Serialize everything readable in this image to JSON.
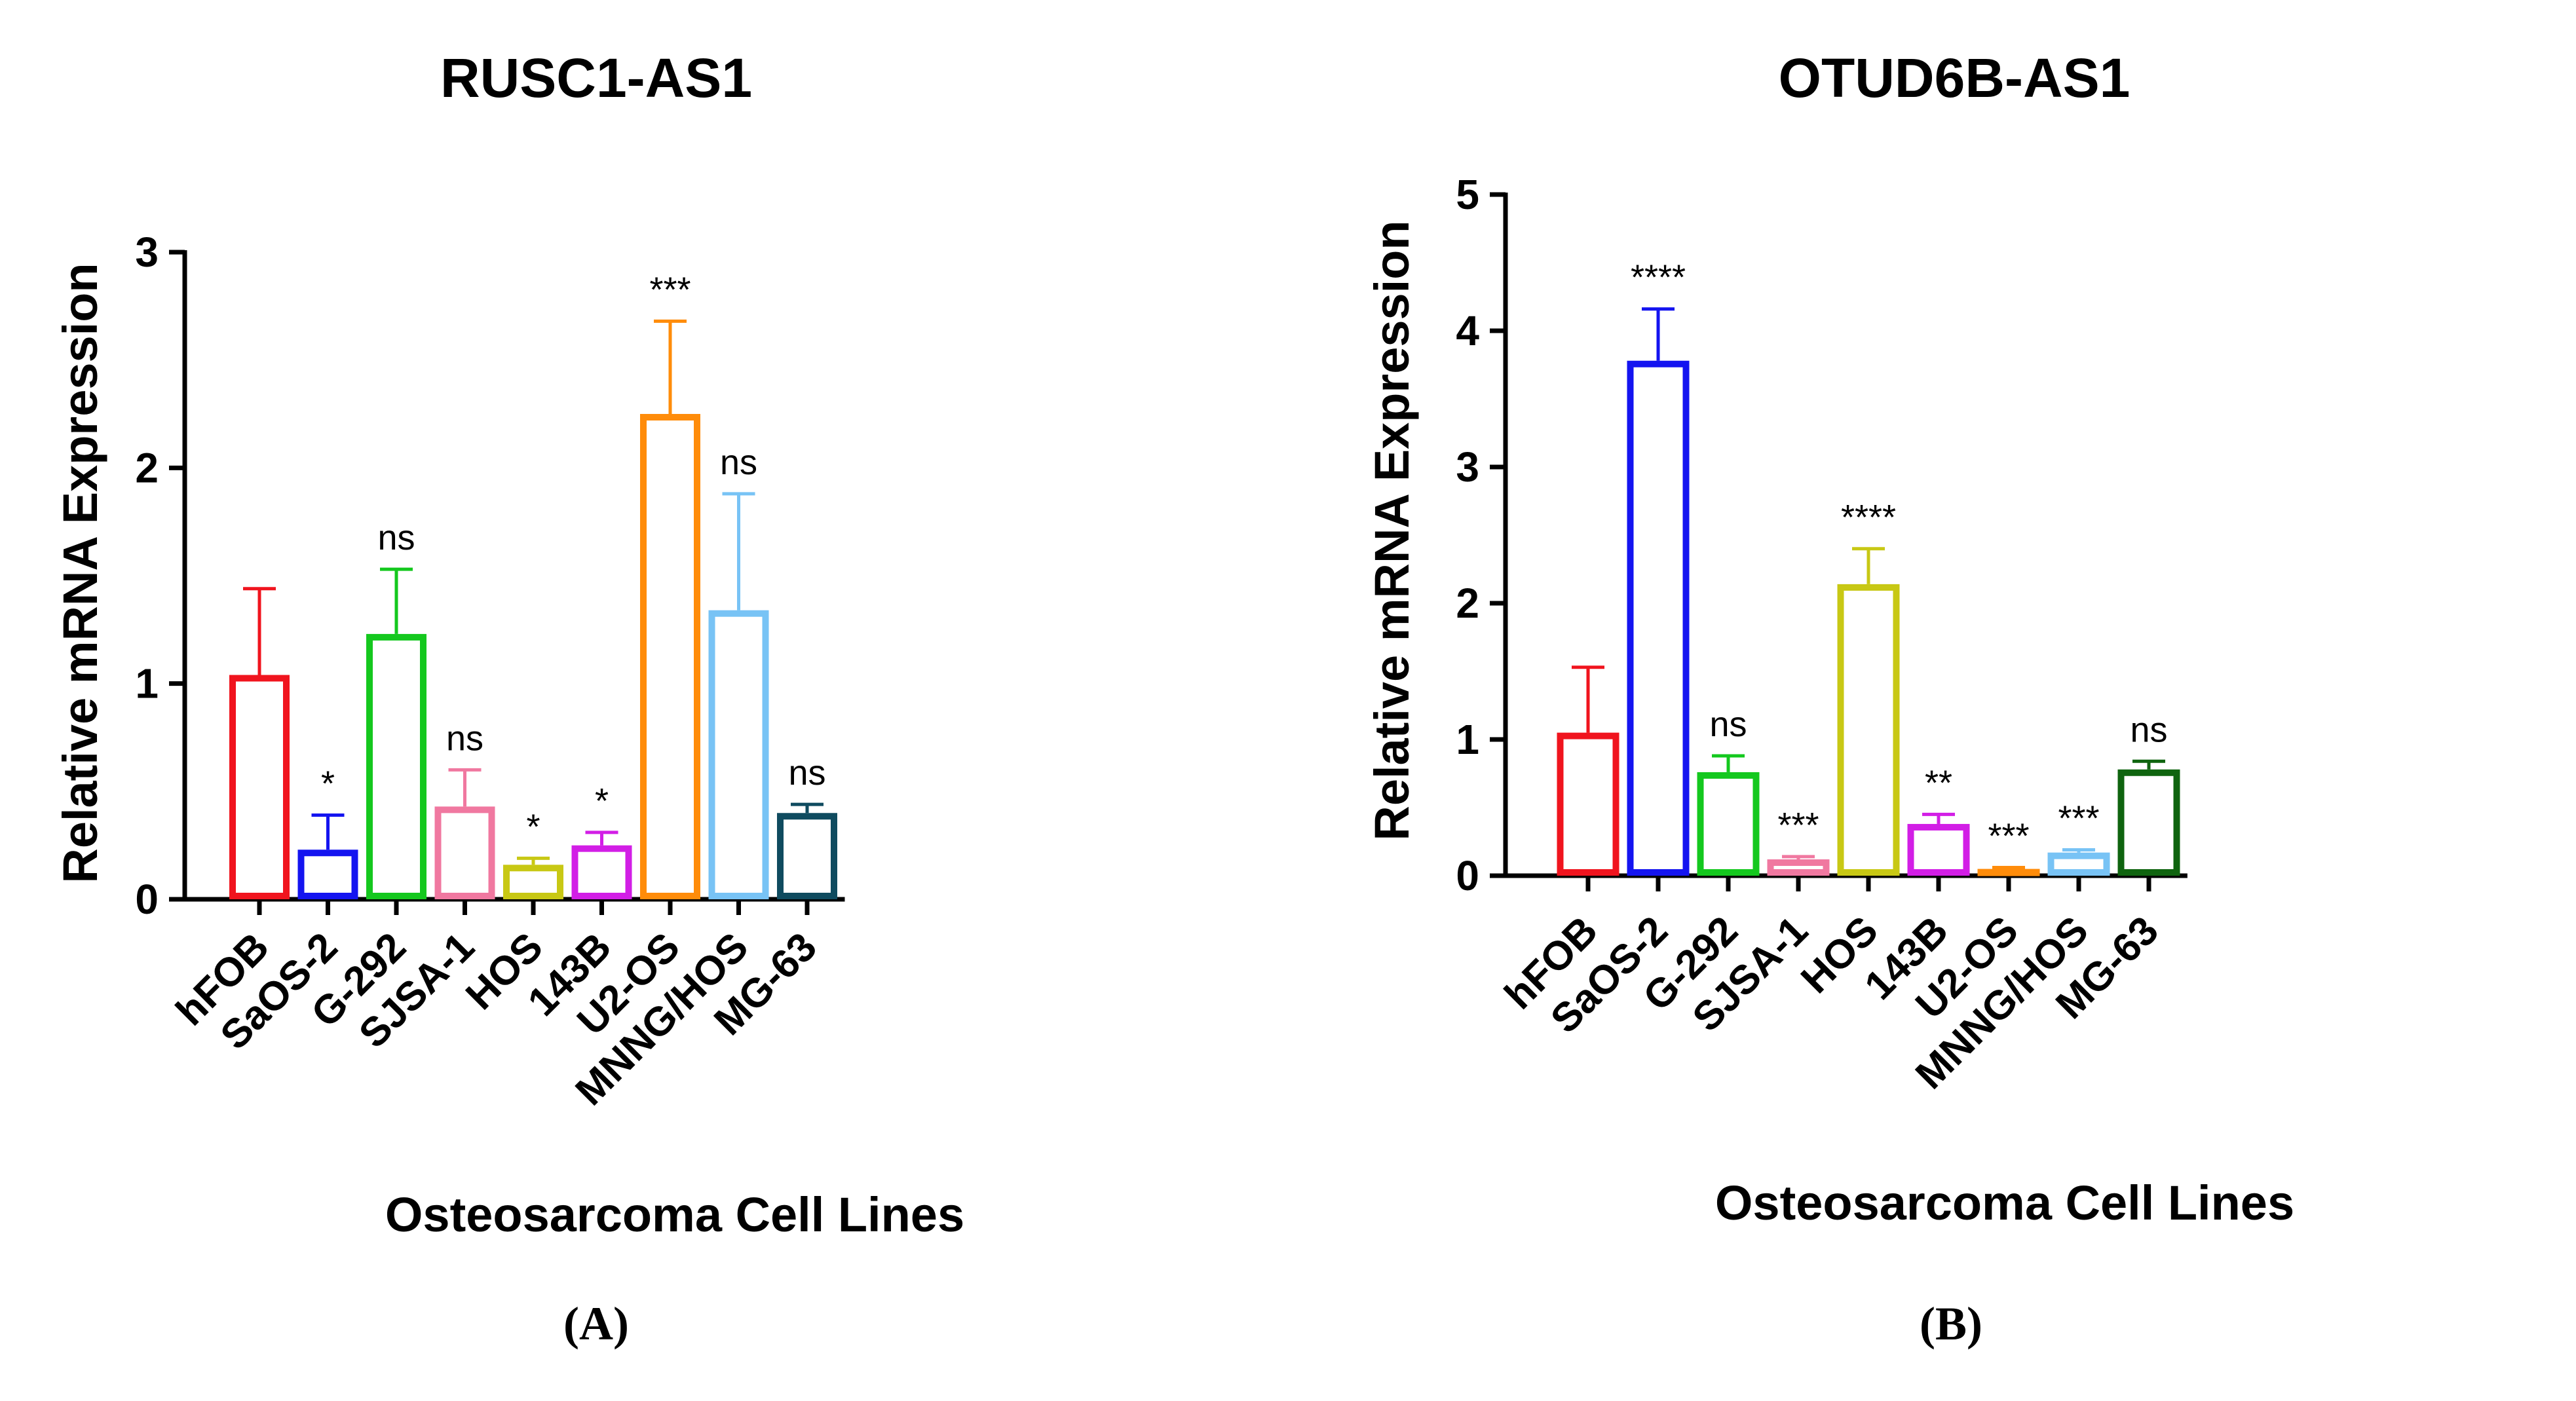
{
  "chart_data": [
    {
      "type": "bar",
      "panel_label": "(A)",
      "title": "RUSC1-AS1",
      "xlabel": "Osteosarcoma Cell Lines",
      "ylabel": "Relative mRNA Expression",
      "ylim": [
        0,
        3
      ],
      "yticks": [
        "0",
        "1",
        "2",
        "3"
      ],
      "categories": [
        "hFOB",
        "SaOS-2",
        "G-292",
        "SJSA-1",
        "HOS",
        "143B",
        "U2-OS",
        "MNNG/HOS",
        "MG-63"
      ],
      "values": [
        1.04,
        0.23,
        1.23,
        0.43,
        0.16,
        0.25,
        2.25,
        1.34,
        0.4
      ],
      "errors": [
        0.4,
        0.16,
        0.3,
        0.17,
        0.03,
        0.06,
        0.43,
        0.54,
        0.04
      ],
      "significance": [
        "",
        "*",
        "ns",
        "ns",
        "*",
        "*",
        "***",
        "ns",
        "ns"
      ],
      "colors": [
        "#f0141e",
        "#1414f0",
        "#14c81e",
        "#f078a0",
        "#c8c814",
        "#d21ee6",
        "#ff8c0a",
        "#78c3f5",
        "#0f4b5f"
      ]
    },
    {
      "type": "bar",
      "panel_label": "(B)",
      "title": "OTUD6B-AS1",
      "xlabel": "Osteosarcoma Cell Lines",
      "ylabel": "Relative mRNA Expression",
      "ylim": [
        0,
        5
      ],
      "yticks": [
        "0",
        "1",
        "2",
        "3",
        "4",
        "5"
      ],
      "categories": [
        "hFOB",
        "SaOS-2",
        "G-292",
        "SJSA-1",
        "HOS",
        "143B",
        "U2-OS",
        "MNNG/HOS",
        "MG-63"
      ],
      "values": [
        1.05,
        3.78,
        0.76,
        0.12,
        2.14,
        0.38,
        0.05,
        0.17,
        0.78
      ],
      "errors": [
        0.48,
        0.38,
        0.12,
        0.02,
        0.26,
        0.07,
        0.01,
        0.02,
        0.06
      ],
      "significance": [
        "",
        "****",
        "ns",
        "***",
        "****",
        "**",
        "***",
        "***",
        "ns"
      ],
      "colors": [
        "#f0141e",
        "#1414f0",
        "#14c81e",
        "#f078a0",
        "#c8c814",
        "#d21ee6",
        "#ff8c0a",
        "#78c3f5",
        "#0f640f"
      ]
    }
  ]
}
